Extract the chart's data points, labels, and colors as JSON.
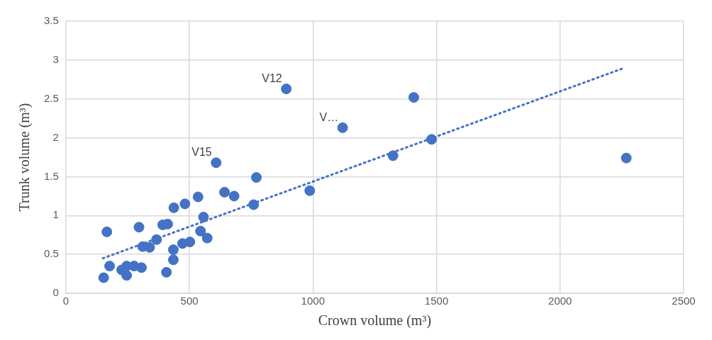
{
  "chart_data": {
    "type": "scatter",
    "xlabel": "Crown volume (m³)",
    "ylabel": "Trunk volume (m³)",
    "xlim": [
      0,
      2500
    ],
    "xticks": [
      0,
      500,
      1000,
      1500,
      2000,
      2500
    ],
    "ylim": [
      0,
      3.5
    ],
    "yticks": [
      0,
      0.5,
      1,
      1.5,
      2,
      2.5,
      3,
      3.5
    ],
    "grid": true,
    "legend": false,
    "marker": "circle",
    "series": [
      {
        "color": "#4472c4",
        "x": [
          153,
          166,
          177,
          226,
          246,
          246,
          276,
          306,
          296,
          311,
          339,
          367,
          392,
          412,
          437,
          482,
          535,
          608,
          642,
          681,
          771,
          760,
          557,
          545,
          572,
          472,
          502,
          435,
          435,
          407,
          892,
          1408,
          1120,
          1480,
          1324,
          2268,
          987
        ],
        "values": [
          0.2,
          0.79,
          0.35,
          0.3,
          0.35,
          0.23,
          0.35,
          0.33,
          0.85,
          0.6,
          0.59,
          0.69,
          0.88,
          0.89,
          1.1,
          1.15,
          1.24,
          1.68,
          1.3,
          1.25,
          1.49,
          1.14,
          0.98,
          0.8,
          0.71,
          0.64,
          0.66,
          0.56,
          0.43,
          0.27,
          2.63,
          2.52,
          2.13,
          1.98,
          1.77,
          1.74,
          1.32
        ]
      },
      {
        "type": "line",
        "color": "#4472c4",
        "line_style": "dotted",
        "marker": "none",
        "x": [
          150,
          2260
        ],
        "values": [
          0.45,
          2.9
        ]
      }
    ],
    "annotations": [
      {
        "text": "V12",
        "x": 892,
        "y": 2.63
      },
      {
        "text": "V…",
        "x": 1120,
        "y": 2.13
      },
      {
        "text": "V15",
        "x": 608,
        "y": 1.68
      }
    ]
  }
}
